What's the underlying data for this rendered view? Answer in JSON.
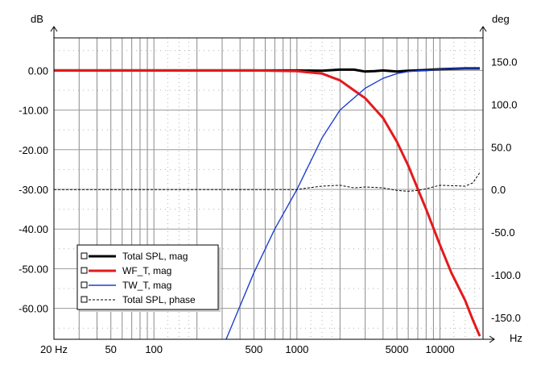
{
  "chart_data": {
    "type": "line",
    "left_axis": {
      "unit": "dB",
      "range": [
        -67.8,
        8.2
      ],
      "ticks": [
        0,
        -10,
        -20,
        -30,
        -40,
        -50,
        -60
      ],
      "tick_labels": [
        "0.00",
        "-10.00",
        "-20.00",
        "-30.00",
        "-40.00",
        "-50.00",
        "-60.00"
      ]
    },
    "right_axis": {
      "unit": "deg",
      "range": [
        -175.6,
        177.9
      ],
      "ticks": [
        150,
        100,
        50,
        0,
        -50,
        -100,
        -150
      ],
      "tick_labels": [
        "150.0",
        "100.0",
        "50.0",
        "0.0",
        "-50.0",
        "-100.0",
        "-150.0"
      ]
    },
    "x_axis": {
      "unit": "Hz",
      "scale": "log",
      "range": [
        20,
        20000
      ],
      "ticks": [
        20,
        50,
        100,
        500,
        1000,
        5000,
        10000
      ],
      "tick_labels": [
        "20 Hz",
        "50",
        "100",
        "500",
        "1000",
        "5000",
        "10000"
      ]
    },
    "grid": true,
    "legend_position": "bottom-left",
    "series": [
      {
        "name": "Total SPL, mag",
        "axis": "left",
        "color": "#000000",
        "style": "solid-thick",
        "x": [
          20,
          100,
          500,
          1000,
          1500,
          2000,
          2500,
          3000,
          3500,
          4000,
          5000,
          6000,
          8000,
          10000,
          15000,
          19000
        ],
        "y": [
          0,
          0,
          0,
          0,
          -0.1,
          0.2,
          0.2,
          -0.3,
          -0.2,
          0,
          -0.3,
          -0.1,
          0.1,
          0.3,
          0.5,
          0.5
        ]
      },
      {
        "name": "WF_T, mag",
        "axis": "left",
        "color": "#e31a1c",
        "style": "solid-thick",
        "x": [
          20,
          500,
          1000,
          1500,
          2000,
          2500,
          3000,
          4000,
          5000,
          6000,
          8000,
          10000,
          12000,
          15000,
          17000,
          19000
        ],
        "y": [
          0,
          0,
          -0.2,
          -0.8,
          -2.5,
          -5,
          -7,
          -12,
          -18,
          -24,
          -35,
          -44,
          -51,
          -58,
          -63,
          -67
        ]
      },
      {
        "name": "TW_T, mag",
        "axis": "left",
        "color": "#1f3fd0",
        "style": "solid",
        "x": [
          320,
          500,
          700,
          1000,
          1500,
          2000,
          3000,
          4000,
          5000,
          6000,
          7000,
          8000,
          10000,
          15000,
          19000
        ],
        "y": [
          -67.8,
          -51,
          -40,
          -30,
          -17,
          -10,
          -4.5,
          -2,
          -0.8,
          -0.3,
          -0.1,
          0,
          0.3,
          0.5,
          0.5
        ]
      },
      {
        "name": "Total SPL, phase",
        "axis": "right",
        "color": "#000000",
        "style": "dashed",
        "x": [
          20,
          900,
          1000,
          1200,
          1500,
          2000,
          2500,
          3000,
          4000,
          5000,
          6000,
          7000,
          8000,
          10000,
          15000,
          17000,
          19000
        ],
        "y": [
          0,
          0,
          0,
          2,
          4,
          5,
          2,
          3,
          2,
          -1,
          -2,
          -1,
          1,
          5,
          4,
          8,
          20
        ]
      }
    ]
  }
}
